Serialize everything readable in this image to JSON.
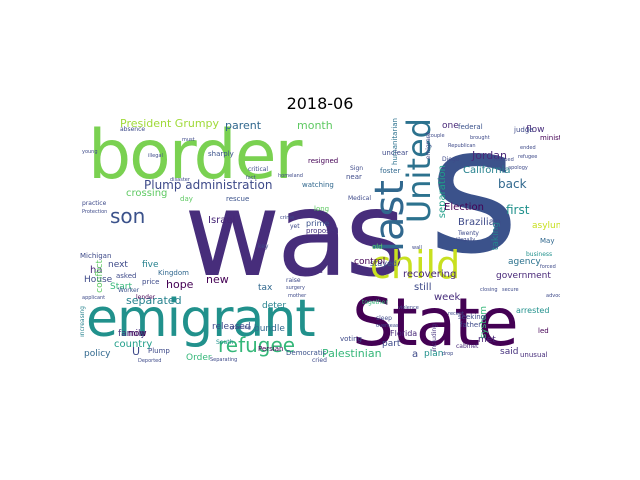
{
  "title": "2018-06",
  "words": {
    "was": {
      "text": "was",
      "color": "#472d7b"
    },
    "s": {
      "text": "s",
      "color": "#3b528b"
    },
    "border": {
      "text": "border",
      "color": "#7ad151"
    },
    "state": {
      "text": "State",
      "color": "#440154"
    },
    "emigrant": {
      "text": "emigrant",
      "color": "#21918c"
    },
    "child": {
      "text": "child",
      "color": "#c8e020"
    },
    "last": {
      "text": "last",
      "color": "#31688e"
    },
    "united": {
      "text": "United",
      "color": "#2c728e"
    },
    "refugee": {
      "text": "refugee",
      "color": "#35b779"
    },
    "son": {
      "text": "son",
      "color": "#3b528b"
    },
    "plump_administration": {
      "text": "Plump administration",
      "color": "#3e4a89"
    },
    "president_grumpy": {
      "text": "President Grumpy",
      "color": "#a0da39"
    },
    "parent": {
      "text": "parent",
      "color": "#31688e"
    },
    "month": {
      "text": "month",
      "color": "#5ec962"
    },
    "california": {
      "text": "California",
      "color": "#26828e"
    },
    "separation": {
      "text": "separation",
      "color": "#1f9e89"
    },
    "brazilian": {
      "text": "Brazilian",
      "color": "#3e4a89"
    },
    "election": {
      "text": "Election",
      "color": "#440154"
    },
    "jordan": {
      "text": "Jordan",
      "color": "#482878"
    },
    "first": {
      "text": "first",
      "color": "#21918c"
    },
    "back": {
      "text": "back",
      "color": "#31688e"
    },
    "government": {
      "text": "government",
      "color": "#482878"
    },
    "palestinian": {
      "text": "Palestinian",
      "color": "#35b779"
    },
    "separated": {
      "text": "separated",
      "color": "#26828e"
    },
    "country": {
      "text": "country",
      "color": "#1f9e89"
    },
    "hope": {
      "text": "hope",
      "color": "#440154"
    },
    "released": {
      "text": "released",
      "color": "#3e4a89"
    },
    "bundle": {
      "text": "bundle",
      "color": "#31688e"
    },
    "new": {
      "text": "new",
      "color": "#440154"
    },
    "israel": {
      "text": "Israel",
      "color": "#482878"
    },
    "crossing": {
      "text": "crossing",
      "color": "#5ec962"
    },
    "family": {
      "text": "family",
      "color": "#46327e"
    },
    "policy": {
      "text": "policy",
      "color": "#31688e"
    },
    "order": {
      "text": "Order",
      "color": "#35b779"
    },
    "deter": {
      "text": "deter",
      "color": "#26828e"
    },
    "tax": {
      "text": "tax",
      "color": "#31688e"
    },
    "week": {
      "text": "week",
      "color": "#472d7b"
    },
    "plan": {
      "text": "plan",
      "color": "#21918c"
    },
    "said": {
      "text": "said",
      "color": "#46327e"
    },
    "met": {
      "text": "met",
      "color": "#482878"
    },
    "recovering": {
      "text": "recovering",
      "color": "#482878"
    },
    "still": {
      "text": "still",
      "color": "#3e4a89"
    },
    "part": {
      "text": "part",
      "color": "#3e4a89"
    },
    "stayed": {
      "text": "stayed",
      "color": "#3b528b"
    },
    "arrested": {
      "text": "arrested",
      "color": "#21918c"
    },
    "agency": {
      "text": "agency",
      "color": "#2c728e"
    },
    "asylum": {
      "text": "asylum",
      "color": "#c8e020"
    },
    "flow": {
      "text": "flow",
      "color": "#472d7b"
    },
    "system": {
      "text": "system",
      "color": "#35b779"
    },
    "taking": {
      "text": "taking",
      "color": "#26828e"
    },
    "house": {
      "text": "House",
      "color": "#3e4a89"
    },
    "start": {
      "text": "Start",
      "color": "#35b779"
    },
    "now": {
      "text": "now",
      "color": "#440154"
    },
    "ha": {
      "text": "ha",
      "color": "#482878"
    },
    "next": {
      "text": "next",
      "color": "#3e4a89"
    },
    "five": {
      "text": "five",
      "color": "#26828e"
    },
    "u": {
      "text": "U",
      "color": "#3e4a89"
    },
    "a": {
      "text": "a",
      "color": "#3e4a89"
    },
    "one": {
      "text": "one",
      "color": "#482878"
    },
    "control": {
      "text": "control",
      "color": "#440154"
    },
    "florida": {
      "text": "Florida",
      "color": "#482878"
    },
    "conflict": {
      "text": "conflict",
      "color": "#5ec962"
    },
    "prime": {
      "text": "prime",
      "color": "#3b528b"
    },
    "proposed": {
      "text": "proposed",
      "color": "#46327e"
    },
    "watching": {
      "text": "watching",
      "color": "#31688e"
    },
    "resigned": {
      "text": "resigned",
      "color": "#440154"
    },
    "democratic": {
      "text": "Democratic",
      "color": "#3b528b"
    },
    "persian": {
      "text": "Persian",
      "color": "#440154"
    },
    "arrived": {
      "text": "arrived",
      "color": "#472d7b"
    },
    "michigan": {
      "text": "Michigan",
      "color": "#3e4a89"
    },
    "kingdom": {
      "text": "Kingdom",
      "color": "#31688e"
    },
    "asked": {
      "text": "asked",
      "color": "#3e4a89"
    },
    "price": {
      "text": "price",
      "color": "#3e4a89"
    },
    "plump": {
      "text": "Plump",
      "color": "#3e4a89"
    },
    "south": {
      "text": "South",
      "color": "#21918c"
    },
    "voting": {
      "text": "voting",
      "color": "#3e4a89"
    },
    "worker": {
      "text": "Worker",
      "color": "#3b528b"
    },
    "lender": {
      "text": "lender",
      "color": "#440154"
    },
    "together": {
      "text": "together",
      "color": "#35b779"
    },
    "father": {
      "text": "father",
      "color": "#3e4a89"
    },
    "seeking": {
      "text": "seeking",
      "color": "#3e4a89"
    },
    "cabinet": {
      "text": "cabinet",
      "color": "#482878"
    },
    "unusual": {
      "text": "unusual",
      "color": "#472d7b"
    },
    "led": {
      "text": "led",
      "color": "#440154"
    },
    "may": {
      "text": "May",
      "color": "#31688e"
    },
    "business": {
      "text": "business",
      "color": "#21918c"
    },
    "federal": {
      "text": "federal",
      "color": "#3b528b"
    },
    "judge": {
      "text": "judge",
      "color": "#3e4a89"
    },
    "minister": {
      "text": "minister",
      "color": "#440154"
    },
    "foster": {
      "text": "foster",
      "color": "#31688e"
    },
    "emigrant_small": {
      "text": "emigrant",
      "color": "#3e4a89"
    },
    "humanitarian": {
      "text": "humanitarian",
      "color": "#2c728e"
    },
    "unclear": {
      "text": "unclear",
      "color": "#3e4a89"
    },
    "twenty": {
      "text": "Twenty",
      "color": "#3e4a89"
    },
    "diego": {
      "text": "Diego",
      "color": "#3e4a89"
    },
    "rescue": {
      "text": "rescue",
      "color": "#3b528b"
    },
    "sharply": {
      "text": "sharply",
      "color": "#3b528b"
    },
    "absence": {
      "text": "absence",
      "color": "#3e4a89"
    },
    "practice": {
      "text": "practice",
      "color": "#3e4a89"
    },
    "including": {
      "text": "including",
      "color": "#46327e"
    },
    "sleep": {
      "text": "sleep",
      "color": "#3e4a89"
    },
    "day": {
      "text": "day",
      "color": "#5ec962"
    },
    "long": {
      "text": "long",
      "color": "#5ec962"
    },
    "near": {
      "text": "near",
      "color": "#3e4a89"
    },
    "sign": {
      "text": "Sign",
      "color": "#3e4a89"
    },
    "critical": {
      "text": "critical",
      "color": "#3e4a89"
    },
    "cried": {
      "text": "cried",
      "color": "#3e4a89"
    },
    "medical": {
      "text": "Medical",
      "color": "#3e4a89"
    },
    "old": {
      "text": "old",
      "color": "#5ec962"
    },
    "increasing": {
      "text": "increasing",
      "color": "#26828e"
    },
    "raise": {
      "text": "raise",
      "color": "#3e4a89"
    },
    "surgery": {
      "text": "surgery",
      "color": "#3e4a89"
    },
    "yet": {
      "text": "yet",
      "color": "#3e4a89"
    },
    "key": {
      "text": "key",
      "color": "#3e4a89"
    },
    "applicant": {
      "text": "applicant",
      "color": "#3e4a89"
    },
    "drop": {
      "text": "drop",
      "color": "#3e4a89"
    },
    "overseas": {
      "text": "overseas",
      "color": "#3e4a89"
    },
    "apology": {
      "text": "apology",
      "color": "#3e4a89"
    },
    "closing": {
      "text": "closing",
      "color": "#3e4a89"
    },
    "refugee_small": {
      "text": "refugee",
      "color": "#3e4a89"
    },
    "rescued": {
      "text": "rescued",
      "color": "#3e4a89"
    },
    "illegally": {
      "text": "illegally",
      "color": "#3e4a89"
    },
    "ended": {
      "text": "ended",
      "color": "#3e4a89"
    },
    "couple": {
      "text": "couple",
      "color": "#3e4a89"
    },
    "brought": {
      "text": "brought",
      "color": "#3e4a89"
    },
    "republican": {
      "text": "Republican",
      "color": "#3e4a89"
    },
    "protection": {
      "text": "Protection",
      "color": "#3e4a89"
    },
    "young": {
      "text": "young",
      "color": "#3e4a89"
    },
    "must": {
      "text": "must",
      "color": "#3e4a89"
    },
    "illegal": {
      "text": "illegal",
      "color": "#3e4a89"
    },
    "deported": {
      "text": "Deported",
      "color": "#3e4a89"
    },
    "separating": {
      "text": "Separating",
      "color": "#3e4a89"
    },
    "greeting": {
      "text": "greeting",
      "color": "#3e4a89"
    },
    "mother": {
      "text": "mother",
      "color": "#3e4a89"
    },
    "disaster": {
      "text": "disaster",
      "color": "#3e4a89"
    },
    "homeland": {
      "text": "homeland",
      "color": "#3e4a89"
    },
    "advocate": {
      "text": "advocate",
      "color": "#3e4a89"
    },
    "forced": {
      "text": "forced",
      "color": "#3e4a89"
    },
    "wall": {
      "text": "wall",
      "color": "#3e4a89"
    },
    "violence": {
      "text": "violence",
      "color": "#3e4a89"
    },
    "recent": {
      "text": "recent",
      "color": "#3e4a89"
    },
    "fact": {
      "text": "fact",
      "color": "#3e4a89"
    },
    "crime": {
      "text": "crime",
      "color": "#3e4a89"
    },
    "secure": {
      "text": "secure",
      "color": "#3e4a89"
    }
  }
}
